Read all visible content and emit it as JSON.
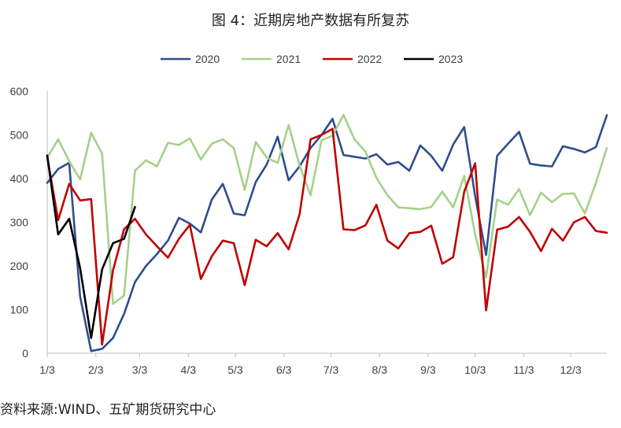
{
  "chart_data": {
    "type": "line",
    "title": "图 4：近期房地产数据有所复苏",
    "source": "资料来源:WIND、五矿期货研究中心",
    "xlabel": "",
    "ylabel": "",
    "ylim": [
      0,
      600
    ],
    "yticks": [
      0,
      100,
      200,
      300,
      400,
      500,
      600
    ],
    "x_ticks": [
      {
        "label": "1/3",
        "x": 1
      },
      {
        "label": "2/3",
        "x": 5.43
      },
      {
        "label": "3/3",
        "x": 9.43
      },
      {
        "label": "4/3",
        "x": 13.86
      },
      {
        "label": "5/3",
        "x": 18.14
      },
      {
        "label": "6/3",
        "x": 22.57
      },
      {
        "label": "7/3",
        "x": 26.86
      },
      {
        "label": "8/3",
        "x": 31.29
      },
      {
        "label": "9/3",
        "x": 35.71
      },
      {
        "label": "10/3",
        "x": 40
      },
      {
        "label": "11/3",
        "x": 44.43
      },
      {
        "label": "12/3",
        "x": 48.71
      }
    ],
    "x_range": [
      1,
      52
    ],
    "grid": false,
    "legend_position": "top",
    "series": [
      {
        "name": "2020",
        "color": "#2e4d8f",
        "x": [
          1,
          2,
          3,
          4,
          5,
          6,
          7,
          8,
          9,
          10,
          11,
          12,
          13,
          14,
          15,
          16,
          17,
          18,
          19,
          20,
          21,
          22,
          23,
          24,
          25,
          26,
          27,
          28,
          29,
          30,
          31,
          32,
          33,
          34,
          35,
          36,
          37,
          38,
          39,
          40,
          41,
          42,
          43,
          44,
          45,
          46,
          47,
          48,
          49,
          50,
          51,
          52
        ],
        "values": [
          390,
          422,
          436,
          130,
          5,
          10,
          35,
          90,
          163,
          200,
          227,
          258,
          310,
          297,
          277,
          352,
          388,
          320,
          316,
          392,
          432,
          496,
          396,
          428,
          470,
          500,
          537,
          454,
          450,
          446,
          456,
          432,
          438,
          418,
          476,
          452,
          418,
          478,
          518,
          360,
          225,
          452,
          480,
          507,
          434,
          430,
          428,
          474,
          468,
          460,
          472,
          545
        ]
      },
      {
        "name": "2021",
        "color": "#a5d08a",
        "x": [
          1,
          2,
          3,
          4,
          5,
          6,
          7,
          8,
          9,
          10,
          11,
          12,
          13,
          14,
          15,
          16,
          17,
          18,
          19,
          20,
          21,
          22,
          23,
          24,
          25,
          26,
          27,
          28,
          29,
          30,
          31,
          32,
          33,
          34,
          35,
          36,
          37,
          38,
          39,
          40,
          41,
          42,
          43,
          44,
          45,
          46,
          47,
          48,
          49,
          50,
          51,
          52
        ],
        "values": [
          448,
          490,
          440,
          398,
          505,
          457,
          113,
          132,
          418,
          442,
          428,
          482,
          477,
          492,
          444,
          480,
          490,
          470,
          374,
          484,
          448,
          436,
          523,
          430,
          362,
          488,
          498,
          546,
          490,
          462,
          402,
          362,
          334,
          332,
          330,
          335,
          370,
          334,
          406,
          272,
          174,
          352,
          340,
          376,
          316,
          368,
          346,
          365,
          366,
          320,
          390,
          470
        ]
      },
      {
        "name": "2022",
        "color": "#c00000",
        "x": [
          1,
          2,
          3,
          4,
          5,
          6,
          7,
          8,
          9,
          10,
          11,
          12,
          13,
          14,
          15,
          16,
          17,
          18,
          19,
          20,
          21,
          22,
          23,
          24,
          25,
          26,
          27,
          28,
          29,
          30,
          31,
          32,
          33,
          34,
          35,
          36,
          37,
          38,
          39,
          40,
          41,
          42,
          43,
          44,
          45,
          46,
          47,
          48,
          49,
          50,
          51,
          52
        ],
        "values": [
          450,
          305,
          388,
          350,
          353,
          20,
          190,
          284,
          308,
          272,
          245,
          219,
          262,
          294,
          170,
          222,
          258,
          252,
          156,
          260,
          245,
          275,
          238,
          318,
          490,
          500,
          514,
          284,
          282,
          293,
          340,
          258,
          240,
          275,
          278,
          292,
          205,
          220,
          370,
          435,
          98,
          283,
          290,
          312,
          278,
          234,
          285,
          258,
          300,
          312,
          280,
          276
        ]
      },
      {
        "name": "2023",
        "color": "#000000",
        "x": [
          1,
          2,
          3,
          4,
          5,
          6,
          7,
          8,
          9
        ],
        "values": [
          453,
          272,
          308,
          195,
          35,
          192,
          252,
          262,
          335
        ]
      }
    ]
  }
}
